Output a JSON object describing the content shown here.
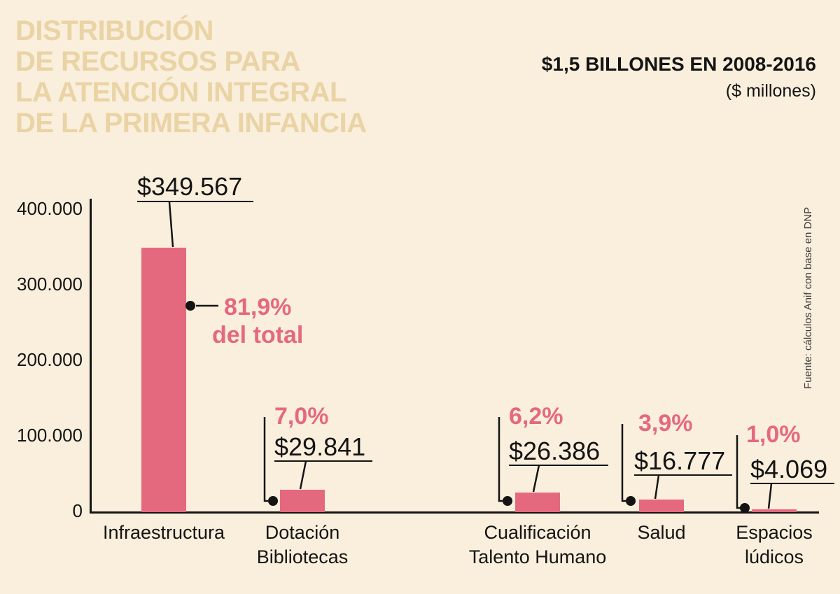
{
  "title_lines": [
    "DISTRIBUCIÓN",
    "DE RECURSOS PARA",
    "LA ATENCIÓN INTEGRAL",
    "DE LA PRIMERA INFANCIA"
  ],
  "header": {
    "total_label": "$1,5 BILLONES EN 2008-2016",
    "units_label": "($ millones)"
  },
  "source_note": "Fuente: cálculos Anif con base en DNP",
  "colors": {
    "background": "#f9efdc",
    "bar": "#e5697e",
    "accent": "#e5697e",
    "title": "#ead3a5",
    "ink": "#141414"
  },
  "chart_data": {
    "type": "bar",
    "title": "Distribución de recursos para la atención integral de la primera infancia",
    "subtitle": "$1,5 billones en 2008-2016 ($ millones)",
    "categories": [
      "Infraestructura",
      "Dotación Bibliotecas",
      "Cualificación Talento Humano",
      "Salud",
      "Espacios lúdicos"
    ],
    "category_label_lines": [
      [
        "Infraestructura",
        ""
      ],
      [
        "Dotación",
        "Bibliotecas"
      ],
      [
        "Cualificación",
        "Talento Humano"
      ],
      [
        "Salud",
        ""
      ],
      [
        "Espacios",
        "lúdicos"
      ]
    ],
    "values": [
      349567,
      29841,
      26386,
      16777,
      4069
    ],
    "value_labels": [
      "$349.567",
      "$29.841",
      "$26.386",
      "$16.777",
      "$4.069"
    ],
    "percent_labels": [
      "81,9%",
      "7,0%",
      "6,2%",
      "3,9%",
      "1,0%"
    ],
    "percent_note": "del total",
    "ylim": [
      0,
      400000
    ],
    "ytick_labels": [
      "400.000",
      "300.000",
      "200.000",
      "100.000",
      "0"
    ],
    "xlabel": "",
    "ylabel": "",
    "grid": false,
    "legend": false
  }
}
